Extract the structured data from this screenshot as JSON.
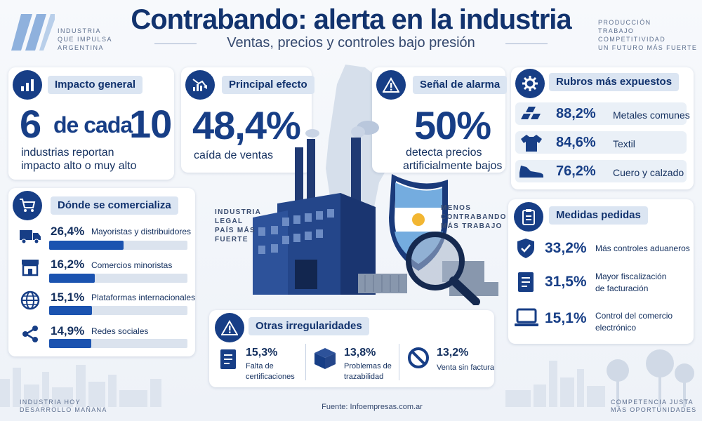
{
  "header": {
    "title": "Contrabando: alerta en la industria",
    "subtitle": "Ventas, precios y controles bajo presión",
    "tag_left": [
      "INDUSTRIA",
      "QUE IMPULSA",
      "ARGENTINA"
    ],
    "tag_right": [
      "PRODUCCIÓN",
      "TRABAJO",
      "COMPETITIVIDAD",
      "UN FUTURO MÁS FUERTE"
    ]
  },
  "impacto": {
    "title": "Impacto general",
    "big_a": "6",
    "big_b": "de cada",
    "big_c": "10",
    "desc_1": "industrias reportan",
    "desc_2": "impacto alto o muy alto",
    "icon": "bar-chart-icon"
  },
  "efecto": {
    "title": "Principal efecto",
    "value": "48,4%",
    "desc": "caída de ventas",
    "icon": "trend-down-icon"
  },
  "alarma": {
    "title": "Señal de alarma",
    "value": "50%",
    "desc_1": "detecta precios",
    "desc_2": "artificialmente bajos",
    "icon": "warning-icon"
  },
  "rubros": {
    "title": "Rubros más expuestos",
    "icon": "gear-icon",
    "items": [
      {
        "pct": "88,2%",
        "label": "Metales comunes",
        "icon": "metal-bars-icon"
      },
      {
        "pct": "84,6%",
        "label": "Textil",
        "icon": "tshirt-icon"
      },
      {
        "pct": "76,2%",
        "label": "Cuero y calzado",
        "icon": "shoe-icon"
      }
    ]
  },
  "comercializa": {
    "title": "Dónde se comercializa",
    "icon": "cart-icon",
    "items": [
      {
        "pct": "26,4%",
        "label": "Mayoristas y distribuidores",
        "share": 26.4,
        "icon": "truck-icon"
      },
      {
        "pct": "16,2%",
        "label": "Comercios minoristas",
        "share": 16.2,
        "icon": "store-icon"
      },
      {
        "pct": "15,1%",
        "label": "Plataformas internacionales",
        "share": 15.1,
        "icon": "globe-icon"
      },
      {
        "pct": "14,9%",
        "label": "Redes sociales",
        "share": 14.9,
        "icon": "share-icon"
      }
    ]
  },
  "medidas": {
    "title": "Medidas pedidas",
    "icon": "clipboard-icon",
    "items": [
      {
        "pct": "33,2%",
        "label_1": "Más controles aduaneros",
        "label_2": "",
        "icon": "shield-icon"
      },
      {
        "pct": "31,5%",
        "label_1": "Mayor fiscalización",
        "label_2": "de facturación",
        "icon": "invoice-icon"
      },
      {
        "pct": "15,1%",
        "label_1": "Control del comercio",
        "label_2": "electrónico",
        "icon": "laptop-icon"
      }
    ]
  },
  "otras": {
    "title": "Otras irregularidades",
    "icon": "warning-icon",
    "items": [
      {
        "pct": "15,3%",
        "label_1": "Falta de",
        "label_2": "certificaciones",
        "icon": "document-icon"
      },
      {
        "pct": "13,8%",
        "label_1": "Problemas de",
        "label_2": "trazabilidad",
        "icon": "box-icon"
      },
      {
        "pct": "13,2%",
        "label_1": "Venta sin factura",
        "label_2": "",
        "icon": "prohibited-icon"
      }
    ]
  },
  "center": {
    "left_label": [
      "INDUSTRIA",
      "LEGAL",
      "PAÍS MÁS",
      "FUERTE"
    ],
    "right_label": [
      "MENOS",
      "CONTRABANDO",
      "MÁS TRABAJO"
    ]
  },
  "footer": {
    "left": [
      "INDUSTRIA HOY",
      "DESARROLLO MAÑANA"
    ],
    "right": [
      "COMPETENCIA JUSTA",
      "MÁS OPORTUNIDADES"
    ],
    "source_prefix": "Fuente:",
    "source": "Infoempresas.com.ar"
  },
  "colors": {
    "navy": "#173e86",
    "bar": "#1b53b0",
    "flag_blue": "#74acdf"
  }
}
